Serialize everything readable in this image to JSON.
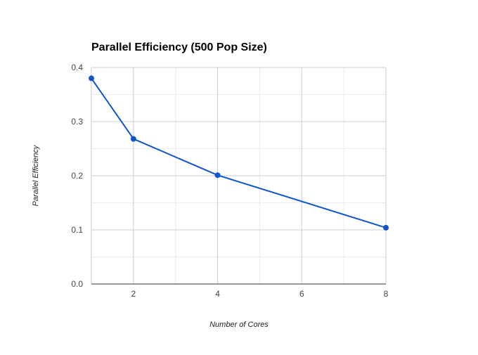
{
  "chart_data": {
    "type": "line",
    "title": "Parallel Efficiency (500 Pop Size)",
    "xlabel": "Number of Cores",
    "ylabel": "Parallel Efficiency",
    "x": [
      1,
      2,
      4,
      8
    ],
    "series": [
      {
        "values": [
          0.38,
          0.268,
          0.201,
          0.104
        ]
      }
    ],
    "xlim": [
      1,
      8
    ],
    "ylim": [
      0,
      0.4
    ],
    "xticks": [
      2,
      4,
      6,
      8
    ],
    "xtick_labels": [
      "2",
      "4",
      "6",
      "8"
    ],
    "yticks": [
      0,
      0.1,
      0.2,
      0.3,
      0.4
    ],
    "ytick_labels": [
      "0.0",
      "0.1",
      "0.2",
      "0.3",
      "0.4"
    ],
    "grid": true,
    "legend": "none",
    "colors": {
      "line": "#1155cc",
      "grid_major": "#cccccc",
      "grid_minor": "#ebebeb",
      "axis": "#333333"
    }
  }
}
